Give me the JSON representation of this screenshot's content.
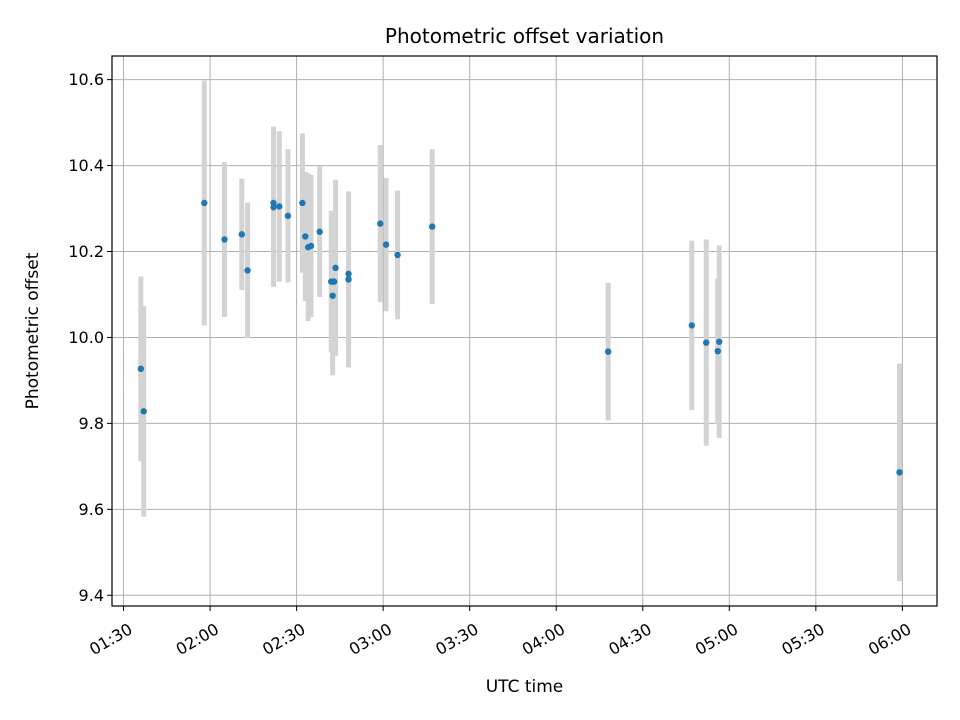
{
  "chart_data": {
    "type": "scatter",
    "title": "Photometric offset variation",
    "xlabel": "UTC time",
    "ylabel": "Photometric offset",
    "x_ticks": [
      "01:30",
      "02:00",
      "02:30",
      "03:00",
      "03:30",
      "04:00",
      "04:30",
      "05:00",
      "05:30",
      "06:00"
    ],
    "xlim": [
      "01:26",
      "06:12"
    ],
    "y_ticks": [
      "9.4",
      "9.6",
      "9.8",
      "10.0",
      "10.2",
      "10.4",
      "10.6"
    ],
    "ylim": [
      9.375,
      10.655
    ],
    "grid": true,
    "colors": {
      "point": "#1f77b4",
      "error_bar": "#d3d3d3",
      "grid": "#b0b0b0"
    },
    "points": [
      {
        "x": "01:36:00",
        "y": 9.927,
        "err": 0.215
      },
      {
        "x": "01:37:00",
        "y": 9.828,
        "err": 0.245
      },
      {
        "x": "01:58:00",
        "y": 10.313,
        "err": 0.285
      },
      {
        "x": "02:05:00",
        "y": 10.228,
        "err": 0.18
      },
      {
        "x": "02:11:00",
        "y": 10.24,
        "err": 0.13
      },
      {
        "x": "02:13:00",
        "y": 10.156,
        "err": 0.158
      },
      {
        "x": "02:22:00",
        "y": 10.303,
        "err": 0.185
      },
      {
        "x": "02:22:00",
        "y": 10.313,
        "err": 0.178
      },
      {
        "x": "02:24:00",
        "y": 10.305,
        "err": 0.175
      },
      {
        "x": "02:27:00",
        "y": 10.283,
        "err": 0.155
      },
      {
        "x": "02:32:00",
        "y": 10.313,
        "err": 0.162
      },
      {
        "x": "02:33:00",
        "y": 10.235,
        "err": 0.15
      },
      {
        "x": "02:34:00",
        "y": 10.21,
        "err": 0.172
      },
      {
        "x": "02:35:00",
        "y": 10.213,
        "err": 0.165
      },
      {
        "x": "02:38:00",
        "y": 10.246,
        "err": 0.152
      },
      {
        "x": "02:42:00",
        "y": 10.13,
        "err": 0.165
      },
      {
        "x": "02:42:30",
        "y": 10.097,
        "err": 0.185
      },
      {
        "x": "02:43:00",
        "y": 10.13,
        "err": 0.165
      },
      {
        "x": "02:43:30",
        "y": 10.162,
        "err": 0.205
      },
      {
        "x": "02:48:00",
        "y": 10.148,
        "err": 0.19
      },
      {
        "x": "02:48:00",
        "y": 10.135,
        "err": 0.205
      },
      {
        "x": "02:59:00",
        "y": 10.265,
        "err": 0.183
      },
      {
        "x": "03:01:00",
        "y": 10.216,
        "err": 0.155
      },
      {
        "x": "03:05:00",
        "y": 10.192,
        "err": 0.15
      },
      {
        "x": "03:17:00",
        "y": 10.258,
        "err": 0.18
      },
      {
        "x": "04:18:00",
        "y": 9.967,
        "err": 0.16
      },
      {
        "x": "04:47:00",
        "y": 10.028,
        "err": 0.197
      },
      {
        "x": "04:52:00",
        "y": 9.988,
        "err": 0.24
      },
      {
        "x": "04:56:00",
        "y": 9.968,
        "err": 0.17
      },
      {
        "x": "04:56:30",
        "y": 9.99,
        "err": 0.224
      },
      {
        "x": "05:59:00",
        "y": 9.686,
        "err": 0.253
      }
    ]
  }
}
